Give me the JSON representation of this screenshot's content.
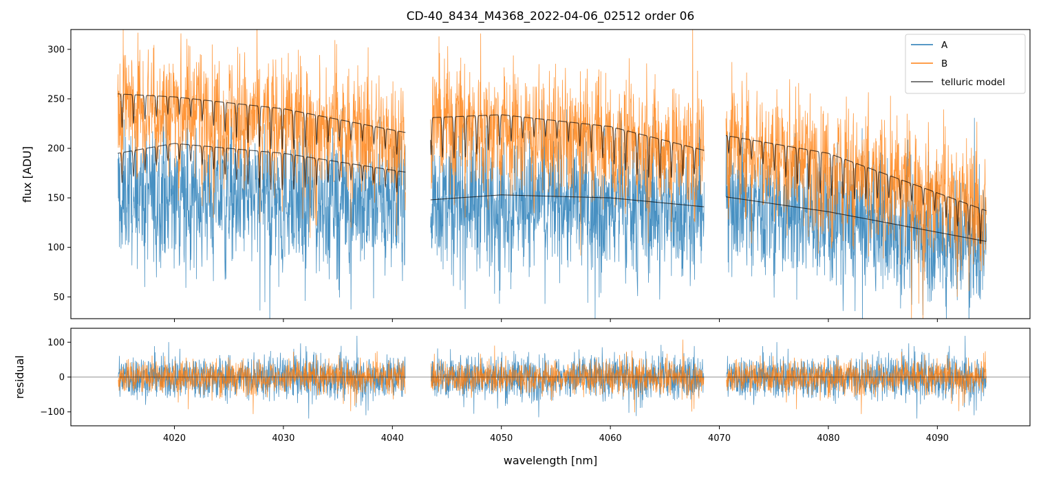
{
  "chart_data": [
    {
      "type": "line",
      "panel": "top",
      "title": "CD-40_8434_M4368_2022-04-06_02512  order 06",
      "xlabel": "",
      "ylabel": "flux [ADU]",
      "xlim": [
        4010.5,
        4098.5
      ],
      "ylim": [
        28,
        320
      ],
      "xticks": [
        4020,
        4030,
        4040,
        4050,
        4060,
        4070,
        4080,
        4090
      ],
      "yticks": [
        50,
        100,
        150,
        200,
        250,
        300
      ],
      "segments": [
        [
          4014.8,
          4041.2
        ],
        [
          4043.5,
          4068.6
        ],
        [
          4070.6,
          4094.5
        ]
      ],
      "legend": {
        "position": "top-right",
        "entries": [
          {
            "label": "A",
            "color": "#1f77b4"
          },
          {
            "label": "B",
            "color": "#ff7f0e"
          },
          {
            "label": "telluric model",
            "color": "#000000"
          }
        ]
      },
      "series": [
        {
          "name": "A",
          "color": "#1f77b4",
          "note": "noisy spectrum, continuum ~150 ADU, scatter ~±55",
          "continuum_points": [
            [
              4014.8,
              155
            ],
            [
              4041.2,
              148
            ],
            [
              4043.5,
              150
            ],
            [
              4050,
              152
            ],
            [
              4068.6,
              140
            ],
            [
              4070.6,
              150
            ],
            [
              4094.5,
              106
            ]
          ]
        },
        {
          "name": "B",
          "color": "#ff7f0e",
          "note": "noisy spectrum, continuum ~250 ADU, scatter ~±55",
          "continuum_points": [
            [
              4014.8,
              250
            ],
            [
              4041.2,
              213
            ],
            [
              4043.5,
              230
            ],
            [
              4068.6,
              200
            ],
            [
              4070.6,
              213
            ],
            [
              4094.5,
              140
            ]
          ]
        },
        {
          "name": "telluric model (A)",
          "color": "#000000",
          "envelope": [
            [
              [
                4014.8,
                195
              ],
              [
                4020,
                205
              ],
              [
                4030,
                195
              ],
              [
                4041.2,
                176
              ]
            ],
            [
              [
                4043.5,
                148
              ],
              [
                4050,
                153
              ],
              [
                4060,
                150
              ],
              [
                4068.6,
                141
              ]
            ],
            [
              [
                4070.6,
                151
              ],
              [
                4080,
                136
              ],
              [
                4094.5,
                106
              ]
            ]
          ],
          "absorption_lines": [
            true,
            false,
            false
          ]
        },
        {
          "name": "telluric model (B)",
          "color": "#000000",
          "envelope": [
            [
              [
                4014.8,
                255
              ],
              [
                4020,
                252
              ],
              [
                4030,
                240
              ],
              [
                4041.2,
                216
              ]
            ],
            [
              [
                4043.5,
                231
              ],
              [
                4050,
                234
              ],
              [
                4060,
                222
              ],
              [
                4068.6,
                198
              ]
            ],
            [
              [
                4070.6,
                213
              ],
              [
                4080,
                195
              ],
              [
                4094.5,
                137
              ]
            ]
          ],
          "absorption_lines": [
            true,
            true,
            true
          ]
        }
      ]
    },
    {
      "type": "line",
      "panel": "bottom",
      "title": "",
      "xlabel": "wavelength [nm]",
      "ylabel": "residual",
      "xlim": [
        4010.5,
        4098.5
      ],
      "ylim": [
        -140,
        140
      ],
      "xticks": [
        4020,
        4030,
        4040,
        4050,
        4060,
        4070,
        4080,
        4090
      ],
      "yticks": [
        -100,
        0,
        100
      ],
      "zero_line": true,
      "series": [
        {
          "name": "A",
          "color": "#1f77b4",
          "note": "residual noise ~±60"
        },
        {
          "name": "B",
          "color": "#ff7f0e",
          "note": "residual noise ~±45"
        }
      ]
    }
  ]
}
